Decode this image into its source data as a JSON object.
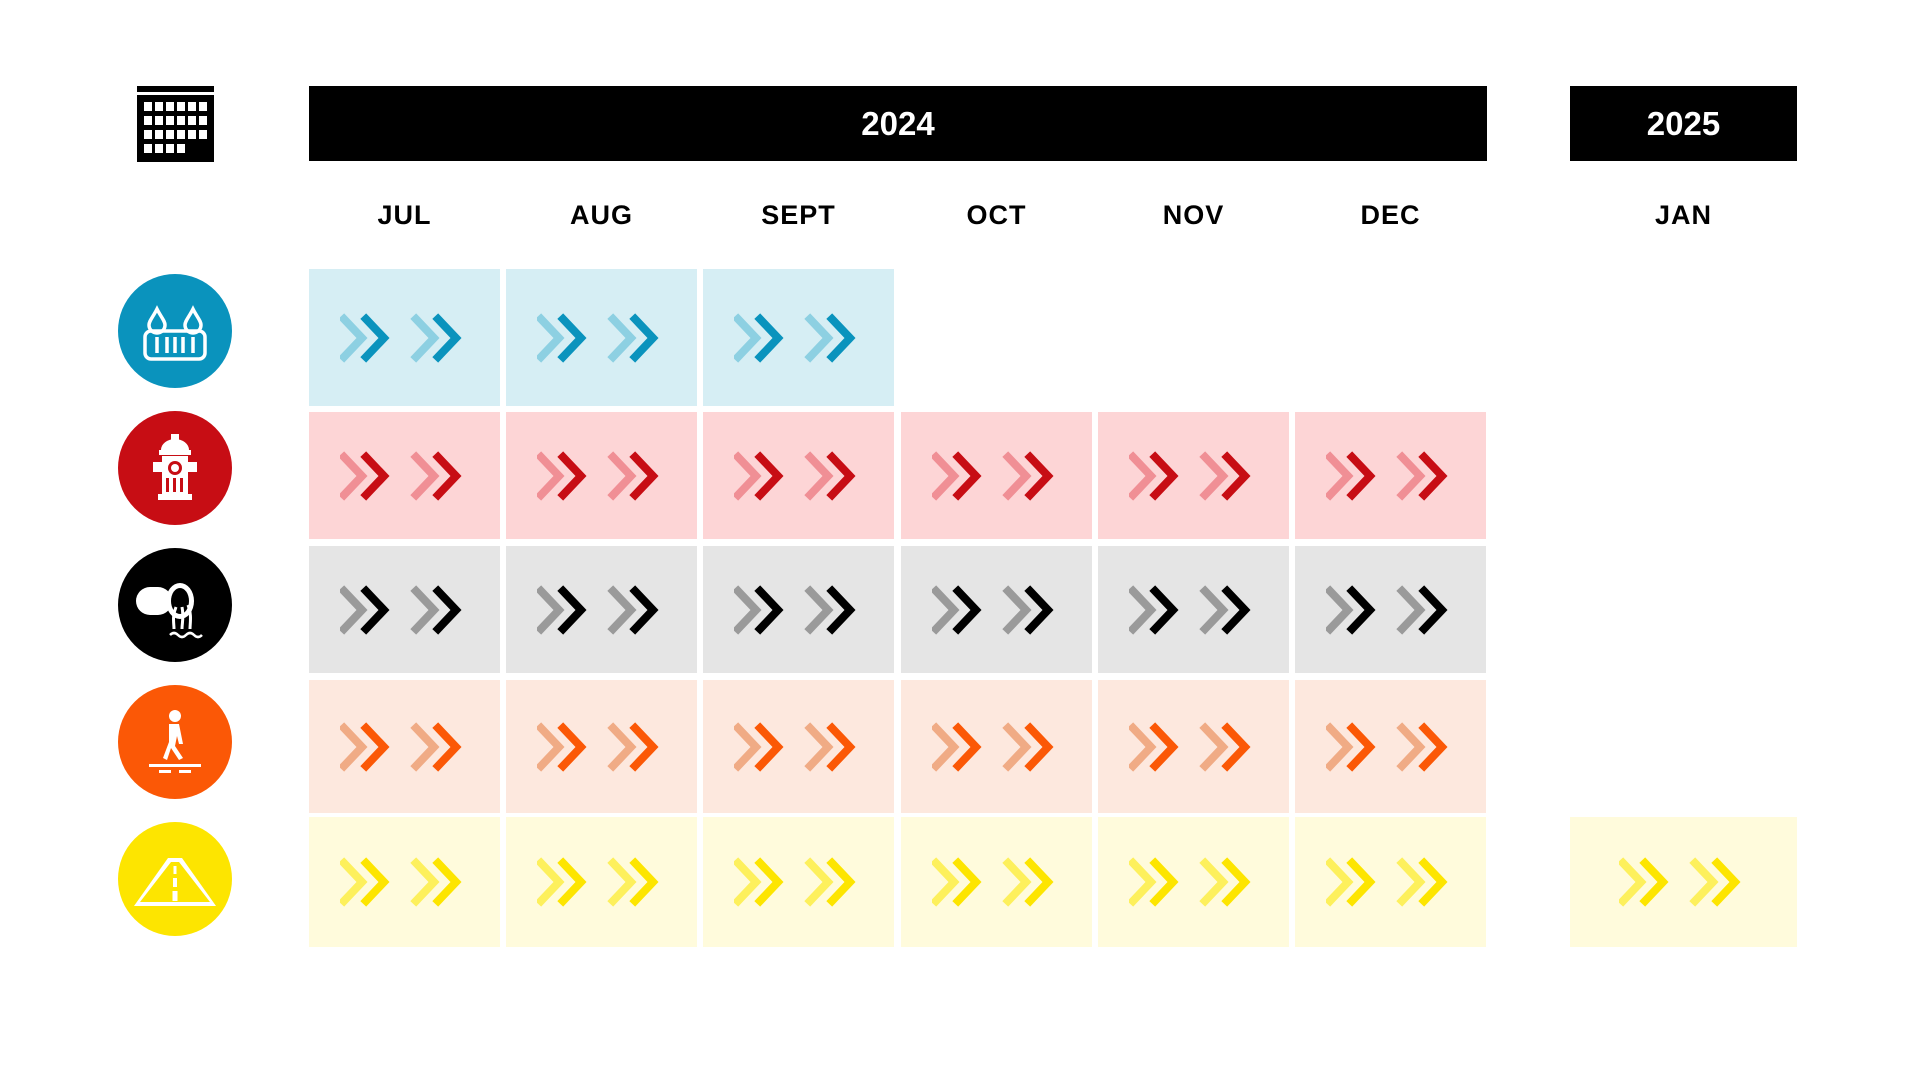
{
  "years": [
    {
      "label": "2024",
      "months": [
        "JUL",
        "AUG",
        "SEPT",
        "OCT",
        "NOV",
        "DEC"
      ]
    },
    {
      "label": "2025",
      "months": [
        "JAN"
      ]
    }
  ],
  "header_icon": "calendar-icon",
  "rows": [
    {
      "name": "water",
      "icon": "water-drain-icon",
      "color": "#0a93bd",
      "dark": "#0a93bd",
      "light": "#8dd0e2",
      "bg": "#d6eef4",
      "months": [
        "JUL",
        "AUG",
        "SEPT"
      ]
    },
    {
      "name": "fire-hydrant",
      "icon": "fire-hydrant-icon",
      "color": "#c70d14",
      "dark": "#c70d14",
      "light": "#f08f95",
      "bg": "#fdd5d6",
      "months": [
        "JUL",
        "AUG",
        "SEPT",
        "OCT",
        "NOV",
        "DEC"
      ]
    },
    {
      "name": "sewer",
      "icon": "sewer-pipe-icon",
      "color": "#000000",
      "dark": "#000000",
      "light": "#9a9a9a",
      "bg": "#e5e5e5",
      "months": [
        "JUL",
        "AUG",
        "SEPT",
        "OCT",
        "NOV",
        "DEC"
      ]
    },
    {
      "name": "sidewalk",
      "icon": "pedestrian-icon",
      "color": "#fb5806",
      "dark": "#fb5806",
      "light": "#f0ab85",
      "bg": "#fde8de",
      "months": [
        "JUL",
        "AUG",
        "SEPT",
        "OCT",
        "NOV",
        "DEC"
      ]
    },
    {
      "name": "road",
      "icon": "road-icon",
      "color": "#fde500",
      "dark": "#fde500",
      "light": "#fdf05c",
      "bg": "#fffbdc",
      "months": [
        "JUL",
        "AUG",
        "SEPT",
        "OCT",
        "NOV",
        "DEC",
        "JAN"
      ]
    }
  ]
}
